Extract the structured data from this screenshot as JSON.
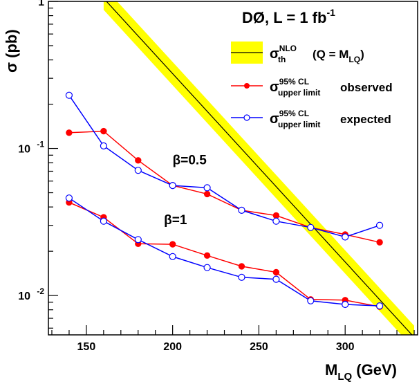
{
  "chart_data": {
    "type": "line",
    "experiment_label": "DØ, L = 1 fb",
    "experiment_label_sup": "-1",
    "xlabel": "M",
    "xlabel_sub": "LQ",
    "xlabel_unit": " (GeV)",
    "ylabel": "σ (pb)",
    "y_scale": "log",
    "xlim": [
      128,
      342
    ],
    "ylim": [
      0.0054,
      1.0
    ],
    "x_ticks": [
      150,
      200,
      250,
      300
    ],
    "y_ticks": [
      {
        "value": 1,
        "label": "1",
        "exp": ""
      },
      {
        "value": 0.1,
        "label": "10",
        "exp": "-1"
      },
      {
        "value": 0.01,
        "label": "10",
        "exp": "-2"
      }
    ],
    "legend": {
      "position": "top-right",
      "entries": [
        {
          "key": "nlo",
          "sym": "σ",
          "sup": "NLO",
          "sub": "th",
          "text": "(Q = M",
          "text_sub": "LQ",
          "text_end": ")"
        },
        {
          "key": "observed",
          "sym": "σ",
          "sup": "95% CL",
          "sub": "upper limit",
          "text": "observed"
        },
        {
          "key": "expected",
          "sym": "σ",
          "sup": "95% CL",
          "sub": "upper limit",
          "text": "expected"
        }
      ]
    },
    "annotations": [
      {
        "text": "β=0.5",
        "x": 200,
        "y": 0.078
      },
      {
        "text": "β=1",
        "x": 195,
        "y": 0.0305
      }
    ],
    "theory_band": {
      "name": "NLO theory",
      "x": [
        160,
        340
      ],
      "central": [
        1.05,
        0.0052
      ],
      "relative_width": 1.2
    },
    "series": [
      {
        "key": "obs_beta05",
        "group": "observed",
        "beta": "0.5",
        "x": [
          140,
          160,
          180,
          200,
          220,
          240,
          260,
          280,
          300,
          320
        ],
        "y": [
          0.128,
          0.131,
          0.083,
          0.056,
          0.049,
          0.038,
          0.035,
          0.029,
          0.026,
          0.023
        ]
      },
      {
        "key": "exp_beta05",
        "group": "expected",
        "beta": "0.5",
        "x": [
          140,
          160,
          180,
          200,
          220,
          240,
          260,
          280,
          300,
          320
        ],
        "y": [
          0.23,
          0.104,
          0.071,
          0.056,
          0.054,
          0.038,
          0.032,
          0.029,
          0.025,
          0.03
        ]
      },
      {
        "key": "obs_beta1",
        "group": "observed",
        "beta": "1",
        "x": [
          140,
          160,
          180,
          200,
          220,
          240,
          260,
          280,
          300,
          320
        ],
        "y": [
          0.043,
          0.034,
          0.0225,
          0.0223,
          0.0187,
          0.0158,
          0.0144,
          0.0094,
          0.0093,
          0.0084
        ]
      },
      {
        "key": "exp_beta1",
        "group": "expected",
        "beta": "1",
        "x": [
          140,
          160,
          180,
          200,
          220,
          240,
          260,
          280,
          300,
          320
        ],
        "y": [
          0.046,
          0.032,
          0.024,
          0.0184,
          0.0155,
          0.0133,
          0.0129,
          0.0092,
          0.0087,
          0.0085
        ]
      }
    ],
    "colors": {
      "observed": "#ff0000",
      "expected": "#0000ff",
      "band": "#ffff00",
      "theory_line": "#000000",
      "marker_obs_fill": "#ff0000"
    }
  }
}
